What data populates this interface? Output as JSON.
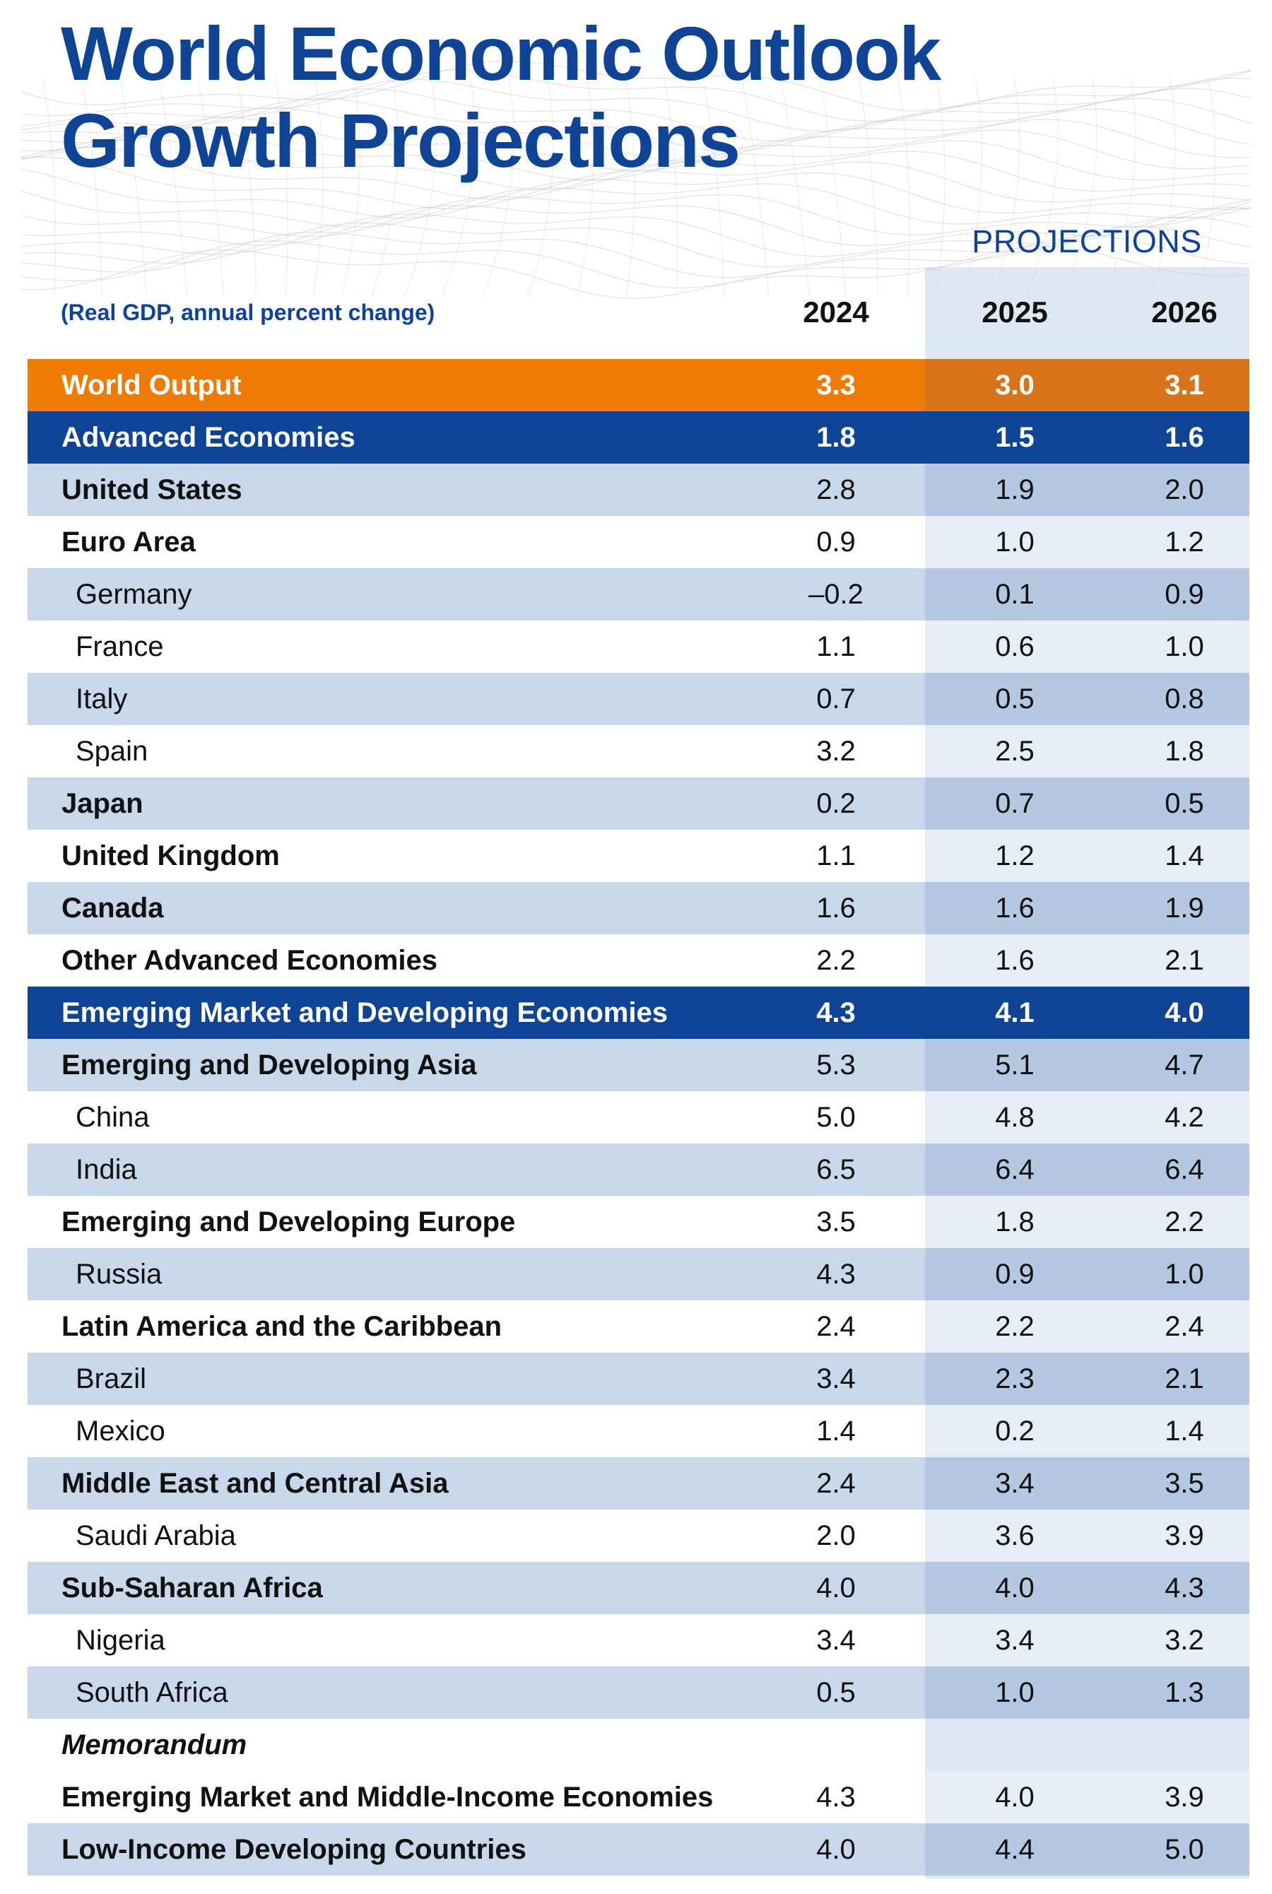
{
  "title_line1": "World Economic Outlook",
  "title_line2": "Growth Projections",
  "projections_label": "PROJECTIONS",
  "subtitle": "(Real GDP, annual percent change)",
  "colors": {
    "brand_blue": "#0e4396",
    "accent_orange": "#ee7b05",
    "row_shade": "#c8d8ea"
  },
  "chart_data": {
    "type": "table",
    "title": "World Economic Outlook Growth Projections",
    "subtitle": "(Real GDP, annual percent change)",
    "columns": [
      "2024",
      "2025",
      "2026"
    ],
    "projected_columns": [
      "2025",
      "2026"
    ],
    "rows": [
      {
        "label": "World Output",
        "kind": "world",
        "values": [
          "3.3",
          "3.0",
          "3.1"
        ]
      },
      {
        "label": "Advanced Economies",
        "kind": "group",
        "values": [
          "1.8",
          "1.5",
          "1.6"
        ]
      },
      {
        "label": "United States",
        "kind": "l0",
        "values": [
          "2.8",
          "1.9",
          "2.0"
        ]
      },
      {
        "label": "Euro Area",
        "kind": "l0",
        "values": [
          "0.9",
          "1.0",
          "1.2"
        ]
      },
      {
        "label": "Germany",
        "kind": "l1",
        "values": [
          "–0.2",
          "0.1",
          "0.9"
        ]
      },
      {
        "label": "France",
        "kind": "l1",
        "values": [
          "1.1",
          "0.6",
          "1.0"
        ]
      },
      {
        "label": "Italy",
        "kind": "l1",
        "values": [
          "0.7",
          "0.5",
          "0.8"
        ]
      },
      {
        "label": "Spain",
        "kind": "l1",
        "values": [
          "3.2",
          "2.5",
          "1.8"
        ]
      },
      {
        "label": "Japan",
        "kind": "l0",
        "values": [
          "0.2",
          "0.7",
          "0.5"
        ]
      },
      {
        "label": "United Kingdom",
        "kind": "l0",
        "values": [
          "1.1",
          "1.2",
          "1.4"
        ]
      },
      {
        "label": "Canada",
        "kind": "l0",
        "values": [
          "1.6",
          "1.6",
          "1.9"
        ]
      },
      {
        "label": "Other Advanced Economies",
        "kind": "l0",
        "values": [
          "2.2",
          "1.6",
          "2.1"
        ]
      },
      {
        "label": "Emerging Market and Developing Economies",
        "kind": "group",
        "values": [
          "4.3",
          "4.1",
          "4.0"
        ]
      },
      {
        "label": "Emerging and Developing Asia",
        "kind": "l0",
        "values": [
          "5.3",
          "5.1",
          "4.7"
        ]
      },
      {
        "label": "China",
        "kind": "l1",
        "values": [
          "5.0",
          "4.8",
          "4.2"
        ]
      },
      {
        "label": "India",
        "kind": "l1",
        "values": [
          "6.5",
          "6.4",
          "6.4"
        ]
      },
      {
        "label": "Emerging and Developing Europe",
        "kind": "l0",
        "values": [
          "3.5",
          "1.8",
          "2.2"
        ]
      },
      {
        "label": "Russia",
        "kind": "l1",
        "values": [
          "4.3",
          "0.9",
          "1.0"
        ]
      },
      {
        "label": "Latin America and the Caribbean",
        "kind": "l0",
        "values": [
          "2.4",
          "2.2",
          "2.4"
        ]
      },
      {
        "label": "Brazil",
        "kind": "l1",
        "values": [
          "3.4",
          "2.3",
          "2.1"
        ]
      },
      {
        "label": "Mexico",
        "kind": "l1",
        "values": [
          "1.4",
          "0.2",
          "1.4"
        ]
      },
      {
        "label": "Middle East and Central Asia",
        "kind": "l0",
        "values": [
          "2.4",
          "3.4",
          "3.5"
        ]
      },
      {
        "label": "Saudi Arabia",
        "kind": "l1",
        "values": [
          "2.0",
          "3.6",
          "3.9"
        ]
      },
      {
        "label": "Sub-Saharan Africa",
        "kind": "l0",
        "values": [
          "4.0",
          "4.0",
          "4.3"
        ]
      },
      {
        "label": "Nigeria",
        "kind": "l1",
        "values": [
          "3.4",
          "3.4",
          "3.2"
        ]
      },
      {
        "label": "South Africa",
        "kind": "l1",
        "values": [
          "0.5",
          "1.0",
          "1.3"
        ]
      },
      {
        "label": "Memorandum",
        "kind": "memo",
        "values": []
      },
      {
        "label": "Emerging Market and Middle-Income Economies",
        "kind": "l0",
        "values": [
          "4.3",
          "4.0",
          "3.9"
        ]
      },
      {
        "label": "Low-Income Developing Countries",
        "kind": "l0",
        "values": [
          "4.0",
          "4.4",
          "5.0"
        ]
      }
    ]
  }
}
